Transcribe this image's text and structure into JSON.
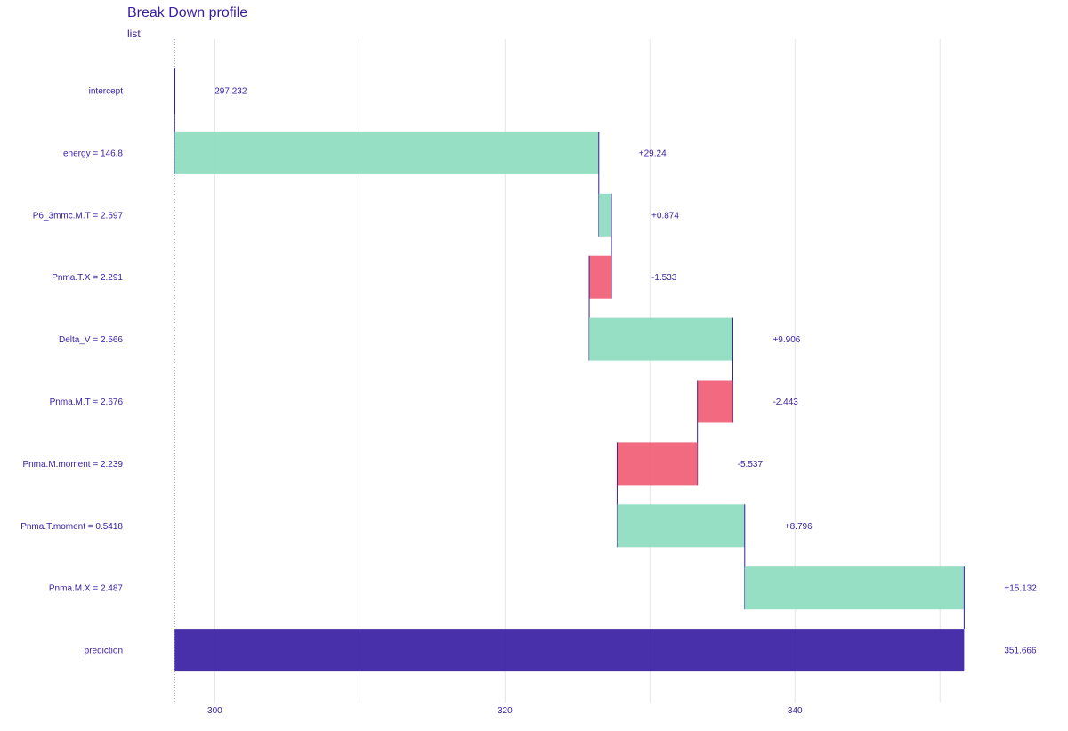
{
  "chart_data": {
    "type": "bar",
    "subtype": "waterfall",
    "title": "Break Down profile",
    "subtitle": "list",
    "xlabel": "",
    "ylabel": "",
    "x_range": [
      294.7,
      353.3
    ],
    "x_ticks": [
      300,
      320,
      340
    ],
    "x_tick_labels": [
      "300",
      "320",
      "340"
    ],
    "grid": true,
    "baseline": 297.232,
    "colors": {
      "positive": "#8bdcbe",
      "negative": "#f05a71",
      "prediction": "#371ea3",
      "text": "#371ea3",
      "grid": "#e5e5e5",
      "connector": "#371ea3"
    },
    "rows": [
      {
        "label": "intercept",
        "value_label": "297.232",
        "kind": "intercept",
        "start": 297.232,
        "end": 297.232
      },
      {
        "label": "energy = 146.8",
        "value_label": "+29.24",
        "kind": "positive",
        "start": 297.232,
        "end": 326.472
      },
      {
        "label": "P6_3mmc.M.T = 2.597",
        "value_label": "+0.874",
        "kind": "positive",
        "start": 326.472,
        "end": 327.346
      },
      {
        "label": "Pnma.T.X = 2.291",
        "value_label": "-1.533",
        "kind": "negative",
        "start": 327.346,
        "end": 325.813
      },
      {
        "label": "Delta_V = 2.566",
        "value_label": "+9.906",
        "kind": "positive",
        "start": 325.813,
        "end": 335.719
      },
      {
        "label": "Pnma.M.T = 2.676",
        "value_label": "-2.443",
        "kind": "negative",
        "start": 335.719,
        "end": 333.276
      },
      {
        "label": "Pnma.M.moment = 2.239",
        "value_label": "-5.537",
        "kind": "negative",
        "start": 333.276,
        "end": 327.739
      },
      {
        "label": "Pnma.T.moment = 0.5418",
        "value_label": "+8.796",
        "kind": "positive",
        "start": 327.739,
        "end": 336.535
      },
      {
        "label": "Pnma.M.X = 2.487",
        "value_label": "+15.132",
        "kind": "positive",
        "start": 336.535,
        "end": 351.667
      },
      {
        "label": "prediction",
        "value_label": "351.666",
        "kind": "prediction",
        "start": 297.232,
        "end": 351.666
      }
    ]
  }
}
